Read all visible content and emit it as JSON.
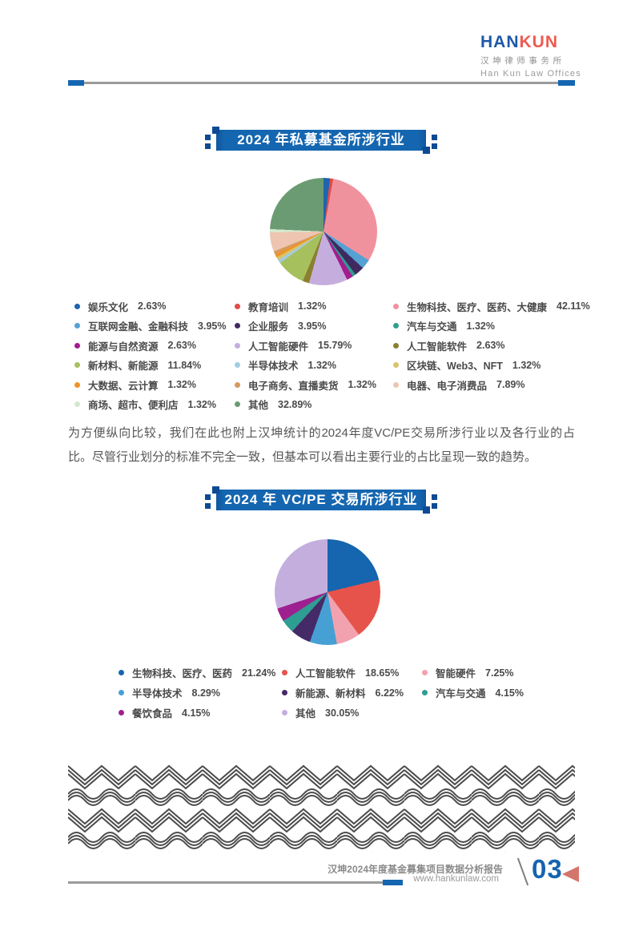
{
  "header": {
    "logo": {
      "part1": "HAN",
      "part2": "KUN",
      "chinese": "汉坤律师事务所",
      "english": "Han Kun Law Offices"
    }
  },
  "intro_paragraph": "为方便纵向比较，我们在此也附上汉坤统计的2024年度VC/PE交易所涉行业以及各行业的占比。尽管行业划分的标准不完全一致，但基本可以看出主要行业的占比呈现一致的趋势。",
  "footer": {
    "report_title": "汉坤2024年度基金募集项目数据分析报告",
    "website": "www.hankunlaw.com",
    "page_number": "03"
  },
  "chart_data": [
    {
      "type": "pie",
      "title": "2024 年私募基金所涉行业",
      "legend_position": "below, 3 columns, row-major",
      "series": [
        {
          "label": "娱乐文化",
          "value": 2.63,
          "color": "#1e64ae"
        },
        {
          "label": "教育培训",
          "value": 1.32,
          "color": "#e04b49"
        },
        {
          "label": "生物科技、医疗、医药、大健康",
          "value": 42.11,
          "color": "#f0929e"
        },
        {
          "label": "互联网金融、金融科技",
          "value": 3.95,
          "color": "#55a1d3"
        },
        {
          "label": "企业服务",
          "value": 3.95,
          "color": "#3f2a60"
        },
        {
          "label": "汽车与交通",
          "value": 1.32,
          "color": "#2f9e90"
        },
        {
          "label": "能源与自然资源",
          "value": 2.63,
          "color": "#a21d8e"
        },
        {
          "label": "人工智能硬件",
          "value": 15.79,
          "color": "#c5aedd"
        },
        {
          "label": "人工智能软件",
          "value": 2.63,
          "color": "#8b7f2f"
        },
        {
          "label": "新材料、新能源",
          "value": 11.84,
          "color": "#a6c05e"
        },
        {
          "label": "半导体技术",
          "value": 1.32,
          "color": "#a3cce4"
        },
        {
          "label": "区块链、Web3、NFT",
          "value": 1.32,
          "color": "#d9c36b"
        },
        {
          "label": "大数据、云计算",
          "value": 1.32,
          "color": "#ef9426"
        },
        {
          "label": "电子商务、直播卖货",
          "value": 1.32,
          "color": "#d69a5e"
        },
        {
          "label": "电器、电子消费品",
          "value": 7.89,
          "color": "#edc5b0"
        },
        {
          "label": "商场、超市、便利店",
          "value": 1.32,
          "color": "#d6e8cf"
        },
        {
          "label": "其他",
          "value": 32.89,
          "color": "#6b9b72"
        }
      ],
      "value_format": "percent"
    },
    {
      "type": "pie",
      "title": "2024 年 VC/PE 交易所涉行业",
      "legend_position": "below, 3 columns, row-major",
      "series": [
        {
          "label": "生物科技、医疗、医药",
          "value": 21.24,
          "color": "#1565af"
        },
        {
          "label": "人工智能软件",
          "value": 18.65,
          "color": "#e5534b"
        },
        {
          "label": "智能硬件",
          "value": 7.25,
          "color": "#f2a2ae"
        },
        {
          "label": "半导体技术",
          "value": 8.29,
          "color": "#47a0d4"
        },
        {
          "label": "新能源、新材料",
          "value": 6.22,
          "color": "#452a68"
        },
        {
          "label": "汽车与交通",
          "value": 4.15,
          "color": "#2f9e92"
        },
        {
          "label": "餐饮食品",
          "value": 4.15,
          "color": "#9e2090"
        },
        {
          "label": "其他",
          "value": 30.05,
          "color": "#c4aede"
        }
      ],
      "value_format": "percent"
    }
  ],
  "colors": {
    "banner_blue": "#1566b0",
    "banner_notch_blue": "#0d4a94",
    "accent_blue": "#1564af",
    "logo_blue": "#1e58a9",
    "logo_red": "#ee5a4f",
    "rule_gray": "#9b9b9b",
    "page_triangle_salmon": "#d4756b",
    "body_text_gray": "#565656",
    "legend_text_gray": "#4a4a4a",
    "footer_text_gray": "#8a8a8a",
    "pattern_stroke_gray": "#4c4c4c"
  }
}
